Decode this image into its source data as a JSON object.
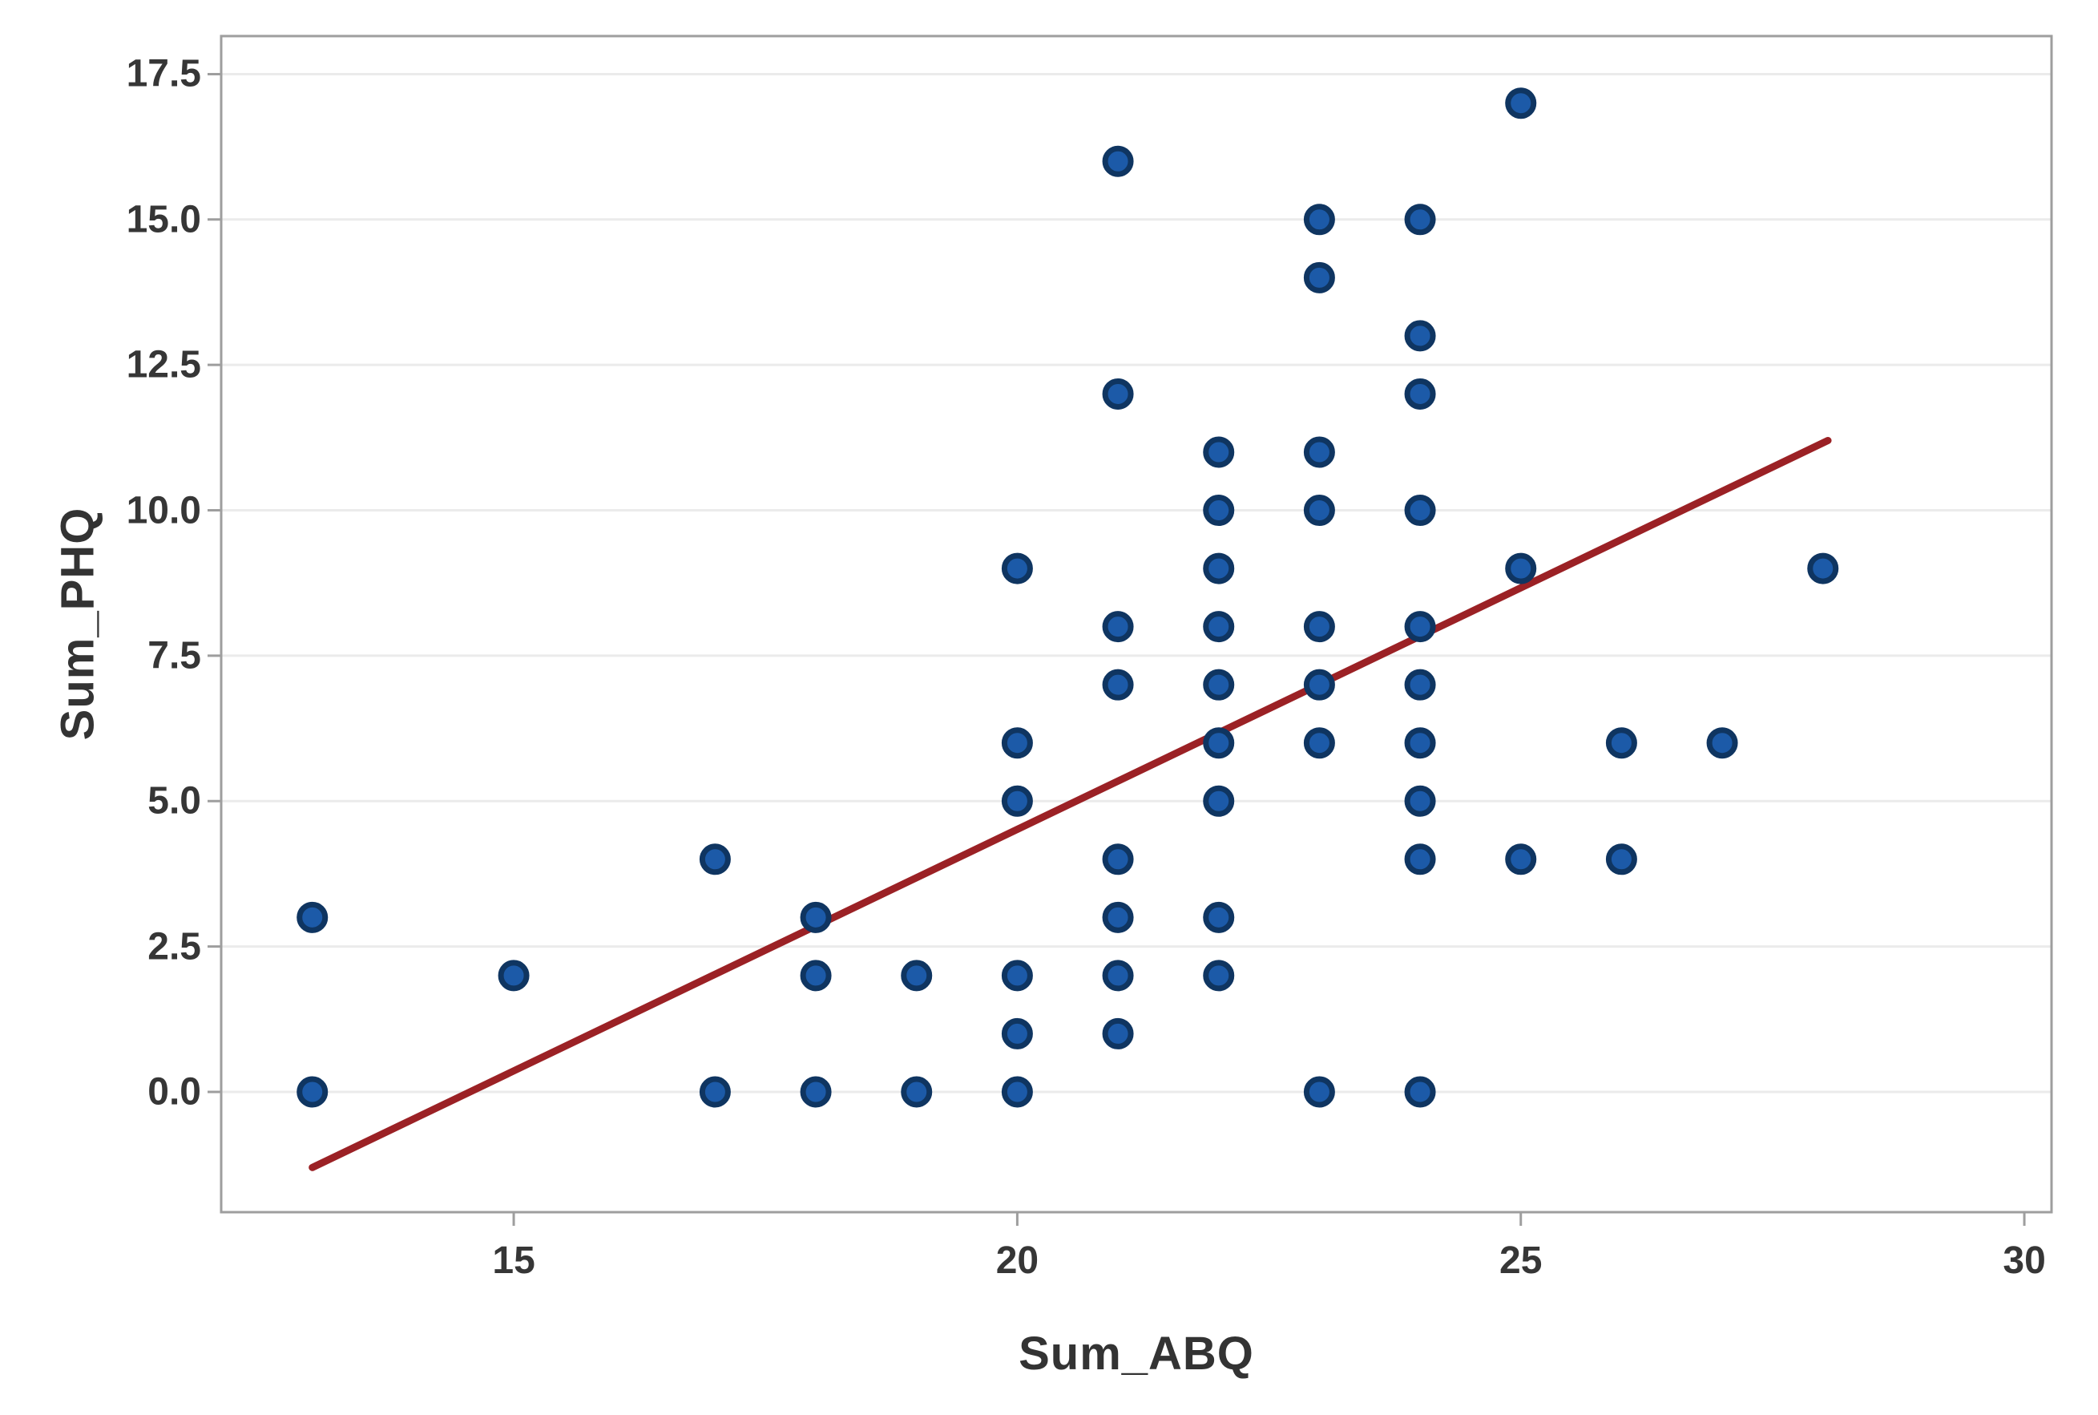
{
  "chart_data": {
    "type": "scatter",
    "title": "",
    "xlabel": "Sum_ABQ",
    "ylabel": "Sum_PHQ",
    "xlim": [
      12.095,
      30.27
    ],
    "ylim": [
      -2.068,
      18.154
    ],
    "x_ticks": [
      15,
      20,
      25,
      30
    ],
    "x_tick_labels": [
      "15",
      "20",
      "25",
      "30"
    ],
    "y_ticks": [
      0,
      2.5,
      5,
      7.5,
      10,
      12.5,
      15,
      17.5
    ],
    "y_tick_labels": [
      "0.0",
      "2.5",
      "5.0",
      "7.5",
      "10.0",
      "12.5",
      "15.0",
      "17.5"
    ],
    "grid": "horizontal-only",
    "legend": "none",
    "points": [
      [
        13,
        0
      ],
      [
        13,
        3
      ],
      [
        15,
        2
      ],
      [
        17,
        0
      ],
      [
        17,
        4
      ],
      [
        18,
        0
      ],
      [
        18,
        2
      ],
      [
        18,
        3
      ],
      [
        19,
        0
      ],
      [
        19,
        2
      ],
      [
        20,
        0
      ],
      [
        20,
        1
      ],
      [
        20,
        2
      ],
      [
        20,
        5
      ],
      [
        20,
        6
      ],
      [
        20,
        9
      ],
      [
        21,
        1
      ],
      [
        21,
        2
      ],
      [
        21,
        3
      ],
      [
        21,
        4
      ],
      [
        21,
        7
      ],
      [
        21,
        8
      ],
      [
        21,
        12
      ],
      [
        21,
        16
      ],
      [
        22,
        2
      ],
      [
        22,
        3
      ],
      [
        22,
        5
      ],
      [
        22,
        6
      ],
      [
        22,
        7
      ],
      [
        22,
        8
      ],
      [
        22,
        9
      ],
      [
        22,
        10
      ],
      [
        22,
        11
      ],
      [
        23,
        0
      ],
      [
        23,
        6
      ],
      [
        23,
        7
      ],
      [
        23,
        8
      ],
      [
        23,
        10
      ],
      [
        23,
        11
      ],
      [
        23,
        14
      ],
      [
        23,
        15
      ],
      [
        24,
        0
      ],
      [
        24,
        4
      ],
      [
        24,
        5
      ],
      [
        24,
        6
      ],
      [
        24,
        7
      ],
      [
        24,
        8
      ],
      [
        24,
        10
      ],
      [
        24,
        12
      ],
      [
        24,
        13
      ],
      [
        24,
        15
      ],
      [
        25,
        4
      ],
      [
        25,
        9
      ],
      [
        25,
        17
      ],
      [
        26,
        4
      ],
      [
        26,
        6
      ],
      [
        27,
        6
      ],
      [
        28,
        9
      ]
    ],
    "fit_line": {
      "x1": 13,
      "y1": -1.3,
      "x2": 28.05,
      "y2": 11.2
    },
    "colors": {
      "marker_fill": "#1c5aa8",
      "marker_edge": "#0f3561",
      "line": "#9b2125",
      "grid": "#ebebeb",
      "frame": "#9e9e9e",
      "text": "#363636",
      "background": "#ffffff"
    }
  }
}
